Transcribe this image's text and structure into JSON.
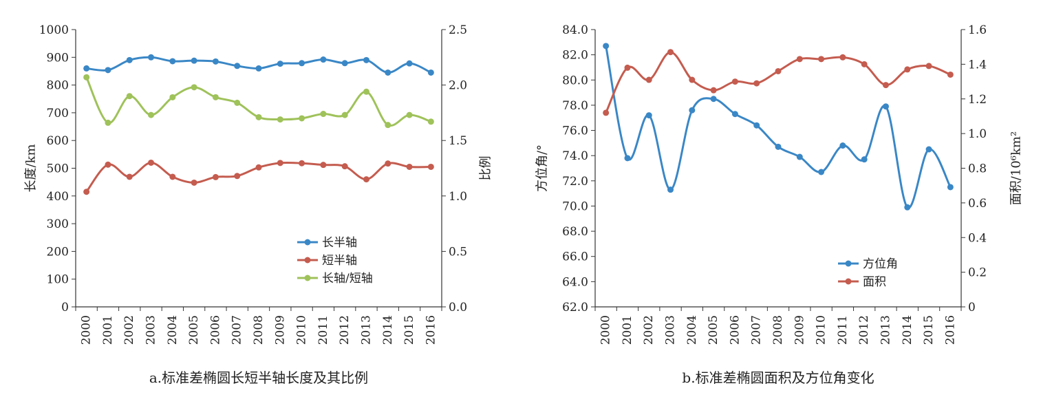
{
  "chart_data": [
    {
      "type": "line",
      "caption": "a.标准差椭圆长短半轴长度及其比例",
      "x": [
        "2000",
        "2001",
        "2002",
        "2003",
        "2004",
        "2005",
        "2006",
        "2007",
        "2008",
        "2009",
        "2010",
        "2011",
        "2012",
        "2013",
        "2014",
        "2015",
        "2016"
      ],
      "ylabel": "长度/km",
      "y2label": "比例",
      "ylim": [
        0,
        1000
      ],
      "y2lim": [
        0,
        2.5
      ],
      "yticks": [
        "0",
        "100",
        "200",
        "300",
        "400",
        "500",
        "600",
        "700",
        "800",
        "900",
        "1000"
      ],
      "y2ticks": [
        "0.0",
        "0.5",
        "1.0",
        "1.5",
        "2.0",
        "2.5"
      ],
      "legend_position": "bottom-right",
      "series": [
        {
          "name": "长半轴",
          "axis": "left",
          "color": "#3a87c6",
          "values": [
            860,
            854,
            890,
            900,
            886,
            888,
            885,
            869,
            860,
            877,
            879,
            892,
            879,
            890,
            845,
            878,
            845
          ]
        },
        {
          "name": "短半轴",
          "axis": "left",
          "color": "#c45c4f",
          "values": [
            415,
            513,
            469,
            520,
            469,
            448,
            468,
            472,
            503,
            519,
            518,
            512,
            507,
            460,
            517,
            505,
            505
          ]
        },
        {
          "name": "长轴/短轴",
          "axis": "right",
          "color": "#9fc25a",
          "values": [
            2.07,
            1.66,
            1.9,
            1.73,
            1.89,
            1.98,
            1.89,
            1.84,
            1.71,
            1.69,
            1.7,
            1.74,
            1.73,
            1.94,
            1.64,
            1.73,
            1.67
          ]
        }
      ]
    },
    {
      "type": "line",
      "caption": "b.标准差椭圆面积及方位角变化",
      "x": [
        "2000",
        "2001",
        "2002",
        "2003",
        "2004",
        "2005",
        "2006",
        "2007",
        "2008",
        "2009",
        "2010",
        "2011",
        "2012",
        "2013",
        "2014",
        "2015",
        "2016"
      ],
      "ylabel": "方位角/°",
      "y2label": "面积/10⁶km²",
      "ylim": [
        62,
        84
      ],
      "y2lim": [
        0,
        1.6
      ],
      "yticks": [
        "62.0",
        "64.0",
        "66.0",
        "68.0",
        "70.0",
        "72.0",
        "74.0",
        "76.0",
        "78.0",
        "80.0",
        "82.0",
        "84.0"
      ],
      "y2ticks": [
        "0",
        "0.2",
        "0.4",
        "0.6",
        "0.8",
        "1.0",
        "1.2",
        "1.4",
        "1.6"
      ],
      "legend_position": "bottom-right",
      "series": [
        {
          "name": "方位角",
          "axis": "left",
          "color": "#3a87c6",
          "values": [
            82.7,
            73.8,
            77.2,
            71.3,
            77.6,
            78.5,
            77.3,
            76.4,
            74.7,
            73.9,
            72.7,
            74.8,
            73.7,
            77.9,
            69.9,
            74.5,
            71.5
          ]
        },
        {
          "name": "面积",
          "axis": "right",
          "color": "#c45c4f",
          "values": [
            1.12,
            1.38,
            1.31,
            1.47,
            1.31,
            1.25,
            1.3,
            1.29,
            1.36,
            1.43,
            1.43,
            1.44,
            1.4,
            1.28,
            1.37,
            1.39,
            1.34
          ]
        }
      ]
    }
  ]
}
